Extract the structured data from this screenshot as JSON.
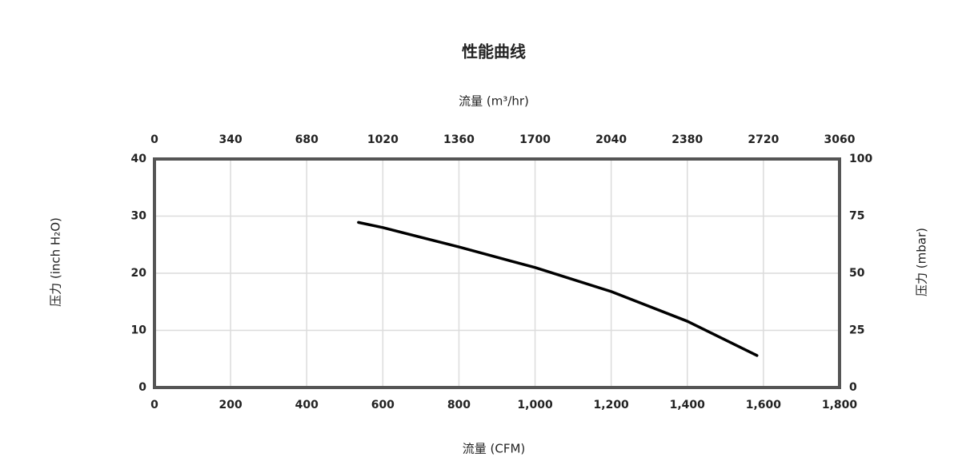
{
  "chart_data": {
    "type": "line",
    "title": "性能曲线",
    "x_label": "流量 (CFM)",
    "x2_label": "流量 (m³/hr)",
    "y_label": "压力 (inch H₂O)",
    "y2_label": "压力 (mbar)",
    "x": [
      536,
      600,
      800,
      1000,
      1200,
      1400,
      1583
    ],
    "series": [
      {
        "color": "#000000",
        "values": [
          28.9,
          28.0,
          24.6,
          21.0,
          16.8,
          11.6,
          5.6
        ]
      }
    ],
    "xlim": [
      0,
      1800
    ],
    "xticks": [
      0,
      200,
      400,
      600,
      800,
      {
        "value": 1000,
        "label": "1,000"
      },
      {
        "value": 1200,
        "label": "1,200"
      },
      {
        "value": 1400,
        "label": "1,400"
      },
      {
        "value": 1600,
        "label": "1,600"
      },
      {
        "value": 1800,
        "label": "1,800"
      }
    ],
    "x2lim": [
      0,
      3060
    ],
    "x2ticks": [
      0,
      340,
      680,
      1020,
      1360,
      1700,
      2040,
      2380,
      2720,
      3060
    ],
    "ylim": [
      0,
      40
    ],
    "yticks": [
      0,
      10,
      20,
      30,
      40
    ],
    "y2lim": [
      0,
      100
    ],
    "y2ticks": [
      0,
      25,
      50,
      75,
      100
    ],
    "grid": true
  }
}
